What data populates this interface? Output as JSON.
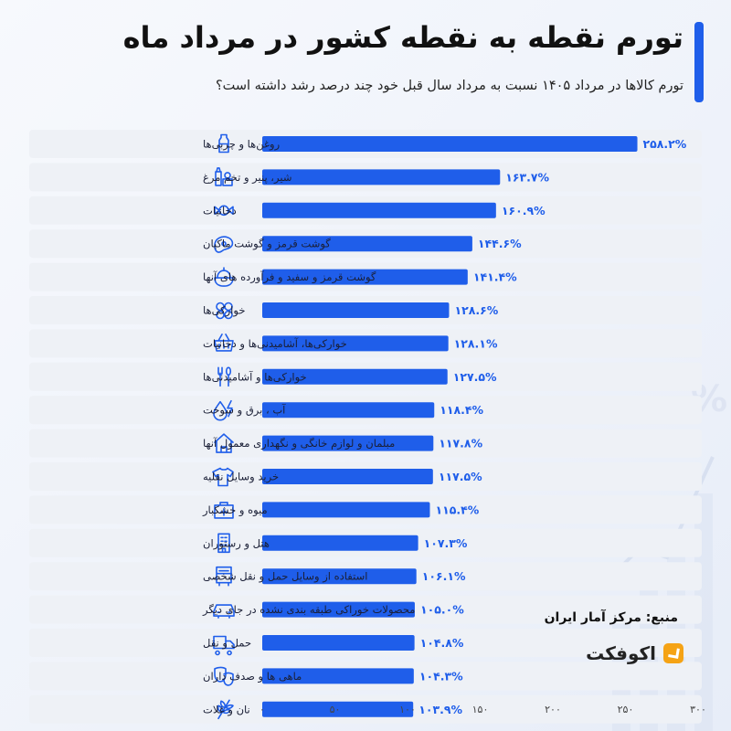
{
  "header": {
    "title": "تورم نقطه به نقطه کشور در مرداد ماه",
    "subtitle": "تورم کالاها در مرداد ۱۴۰۵ نسبت به مرداد سال قبل خود چند درصد رشد داشته است؟"
  },
  "footer": {
    "source": "منبع: مرکز آمار ایران",
    "logo_text": "اکوفکت"
  },
  "colors": {
    "accent": "#1f5eea",
    "row_bg": "#eef1f6",
    "logo": "#f5a315"
  },
  "chart_data": {
    "type": "bar",
    "orientation": "horizontal",
    "title": "",
    "xlabel": "",
    "ylabel": "",
    "xlim": [
      0,
      300
    ],
    "xticks": [
      "۰",
      "۵۰",
      "۱۰۰",
      "۱۵۰",
      "۲۰۰",
      "۲۵۰",
      "۳۰۰"
    ],
    "grid": false,
    "categories": [
      "روغن‌ها و چربی‌ها",
      "شیر، پنیر و تخم مرغ",
      "دخانیات",
      "گوشت قرمز و گوشت ماکیان",
      "گوشت قرمز و سفید و فرآورده های آنها",
      "خوارکی‌ها",
      "خوارکی‌ها، آشامیدنی‌ها و دخانیات",
      "خوارکی‌ها و آشامیدنی‌ها",
      "آب ، برق و سوخت",
      "مبلمان و لوازم خانگی و نگهداری معمول آنها",
      "خرید وسایل نقلیه",
      "میوه و خشکبار",
      "هتل و رستوران",
      "استفاده از وسایل حمل و نقل شخصی",
      "محصولات خوراکی طبقه بندی نشده در جای دیگر",
      "حمل و نقل",
      "ماهی ها و صدف داران",
      "نان و غلات"
    ],
    "values": [
      258.2,
      163.7,
      160.9,
      144.6,
      141.4,
      128.6,
      128.1,
      127.5,
      118.4,
      117.8,
      117.5,
      115.4,
      107.3,
      106.1,
      105.0,
      104.8,
      104.3,
      103.9
    ],
    "value_labels": [
      "۲۵۸.۲%",
      "۱۶۳.۷%",
      "۱۶۰.۹%",
      "۱۴۴.۶%",
      "۱۴۱.۴%",
      "۱۲۸.۶%",
      "۱۲۸.۱%",
      "۱۲۷.۵%",
      "۱۱۸.۴%",
      "۱۱۷.۸%",
      "۱۱۷.۵%",
      "۱۱۵.۴%",
      "۱۰۷.۳%",
      "۱۰۶.۱%",
      "۱۰۵.۰%",
      "۱۰۴.۸%",
      "۱۰۴.۳%",
      "۱۰۳.۹%"
    ],
    "icons": [
      "bottle-icon",
      "dairy-icon",
      "candy-icon",
      "steak-icon",
      "food-bowl-icon",
      "snacks-icon",
      "basket-icon",
      "utensils-icon",
      "water-energy-icon",
      "house-icon",
      "tshirt-icon",
      "first-aid-icon",
      "hotel-icon",
      "bus-icon",
      "car-icon",
      "truck-icon",
      "masks-icon",
      "wheat-icon"
    ]
  }
}
